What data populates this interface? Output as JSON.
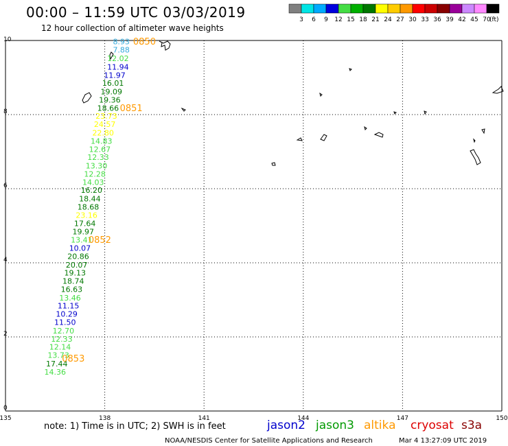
{
  "header": {
    "title": "00:00 – 11:59 UTC 03/03/2019",
    "subtitle": "12 hour collection of altimeter wave heights"
  },
  "legend": {
    "labels": [
      "3",
      "6",
      "9",
      "12",
      "15",
      "18",
      "21",
      "24",
      "27",
      "30",
      "33",
      "36",
      "39",
      "42",
      "45",
      "70"
    ],
    "unit": "(ft)",
    "colors": [
      "#808080",
      "#00e5e5",
      "#00aaff",
      "#0000dd",
      "#44dd44",
      "#00b000",
      "#007700",
      "#ffff00",
      "#ffcc00",
      "#ff9900",
      "#ff0000",
      "#cc0000",
      "#880000",
      "#990099",
      "#cc88ff",
      "#ff88ff",
      "#000000"
    ]
  },
  "axes": {
    "x_ticks": [
      "135",
      "138",
      "141",
      "144",
      "147",
      "150"
    ],
    "y_ticks": [
      "0",
      "2",
      "4",
      "6",
      "8",
      "10"
    ]
  },
  "colors": {
    "jason2": "#0000cc",
    "jason3": "#009900",
    "altika": "#ff9900",
    "cryosat": "#dd0000",
    "s3a": "#880000",
    "cyan": "#33aadd",
    "lightgreen": "#44dd44",
    "yellow": "#ffff00",
    "timelabel": "#ff9900"
  },
  "chart_data": {
    "type": "map",
    "x_range": [
      135,
      150
    ],
    "y_range": [
      0,
      10
    ],
    "swh_points": [
      {
        "lon": 138.5,
        "lat": 9.95,
        "value": "8.93",
        "color": "#33aadd"
      },
      {
        "lon": 138.5,
        "lat": 9.73,
        "value": "7.88",
        "color": "#33aadd"
      },
      {
        "lon": 138.4,
        "lat": 9.5,
        "value": "12.02",
        "color": "#44dd44"
      },
      {
        "lon": 138.4,
        "lat": 9.27,
        "value": "11.94",
        "color": "#0000cc"
      },
      {
        "lon": 138.3,
        "lat": 9.05,
        "value": "11.97",
        "color": "#0000cc"
      },
      {
        "lon": 138.25,
        "lat": 8.83,
        "value": "16.01",
        "color": "#007700"
      },
      {
        "lon": 138.2,
        "lat": 8.6,
        "value": "19.09",
        "color": "#007700"
      },
      {
        "lon": 138.15,
        "lat": 8.38,
        "value": "19.36",
        "color": "#007700"
      },
      {
        "lon": 138.1,
        "lat": 8.16,
        "value": "18.66",
        "color": "#007700"
      },
      {
        "lon": 138.05,
        "lat": 7.94,
        "value": "23.73",
        "color": "#ffff00"
      },
      {
        "lon": 138.0,
        "lat": 7.72,
        "value": "24.57",
        "color": "#ffff00"
      },
      {
        "lon": 137.95,
        "lat": 7.49,
        "value": "22.80",
        "color": "#ffff00"
      },
      {
        "lon": 137.9,
        "lat": 7.27,
        "value": "14.83",
        "color": "#44dd44"
      },
      {
        "lon": 137.85,
        "lat": 7.05,
        "value": "12.67",
        "color": "#44dd44"
      },
      {
        "lon": 137.8,
        "lat": 6.83,
        "value": "12.33",
        "color": "#44dd44"
      },
      {
        "lon": 137.75,
        "lat": 6.6,
        "value": "13.30",
        "color": "#44dd44"
      },
      {
        "lon": 137.7,
        "lat": 6.38,
        "value": "12.28",
        "color": "#44dd44"
      },
      {
        "lon": 137.65,
        "lat": 6.16,
        "value": "14.03",
        "color": "#44dd44"
      },
      {
        "lon": 137.6,
        "lat": 5.94,
        "value": "16.20",
        "color": "#007700"
      },
      {
        "lon": 137.55,
        "lat": 5.71,
        "value": "18.44",
        "color": "#007700"
      },
      {
        "lon": 137.5,
        "lat": 5.49,
        "value": "18.68",
        "color": "#007700"
      },
      {
        "lon": 137.45,
        "lat": 5.27,
        "value": "23.16",
        "color": "#ffff00"
      },
      {
        "lon": 137.4,
        "lat": 5.05,
        "value": "17.64",
        "color": "#007700"
      },
      {
        "lon": 137.35,
        "lat": 4.82,
        "value": "19.97",
        "color": "#007700"
      },
      {
        "lon": 137.3,
        "lat": 4.6,
        "value": "13.41",
        "color": "#44dd44"
      },
      {
        "lon": 137.25,
        "lat": 4.38,
        "value": "10.07",
        "color": "#0000cc"
      },
      {
        "lon": 137.2,
        "lat": 4.16,
        "value": "20.86",
        "color": "#007700"
      },
      {
        "lon": 137.15,
        "lat": 3.93,
        "value": "20.07",
        "color": "#007700"
      },
      {
        "lon": 137.1,
        "lat": 3.71,
        "value": "19.13",
        "color": "#007700"
      },
      {
        "lon": 137.05,
        "lat": 3.49,
        "value": "18.74",
        "color": "#007700"
      },
      {
        "lon": 137.0,
        "lat": 3.27,
        "value": "16.63",
        "color": "#007700"
      },
      {
        "lon": 136.95,
        "lat": 3.04,
        "value": "13.46",
        "color": "#44dd44"
      },
      {
        "lon": 136.9,
        "lat": 2.82,
        "value": "11.15",
        "color": "#0000cc"
      },
      {
        "lon": 136.85,
        "lat": 2.6,
        "value": "10.29",
        "color": "#0000cc"
      },
      {
        "lon": 136.8,
        "lat": 2.38,
        "value": "11.50",
        "color": "#0000cc"
      },
      {
        "lon": 136.75,
        "lat": 2.15,
        "value": "12.70",
        "color": "#44dd44"
      },
      {
        "lon": 136.7,
        "lat": 1.93,
        "value": "12.33",
        "color": "#44dd44"
      },
      {
        "lon": 136.65,
        "lat": 1.71,
        "value": "12.14",
        "color": "#44dd44"
      },
      {
        "lon": 136.6,
        "lat": 1.49,
        "value": "13.73",
        "color": "#44dd44"
      },
      {
        "lon": 136.55,
        "lat": 1.26,
        "value": "17.44",
        "color": "#007700"
      },
      {
        "lon": 136.5,
        "lat": 1.04,
        "value": "14.36",
        "color": "#44dd44"
      }
    ],
    "time_labels": [
      {
        "lon": 139.2,
        "lat": 9.95,
        "text": "0850"
      },
      {
        "lon": 138.8,
        "lat": 8.16,
        "text": "0851"
      },
      {
        "lon": 137.85,
        "lat": 4.6,
        "text": "0852"
      },
      {
        "lon": 137.05,
        "lat": 1.4,
        "text": "0853"
      }
    ]
  },
  "footer": {
    "note": "note: 1) Time is in UTC; 2) SWH is in feet",
    "satellites": [
      {
        "name": "jason2",
        "color": "#0000cc"
      },
      {
        "name": "jason3",
        "color": "#009900"
      },
      {
        "name": "altika",
        "color": "#ff9900"
      },
      {
        "name": "cryosat",
        "color": "#dd0000"
      },
      {
        "name": "s3a",
        "color": "#880000"
      }
    ],
    "credit": "NOAA/NESDIS Center for Satellite Applications and Research",
    "timestamp": "Mar  4 13:27:09 UTC 2019"
  }
}
